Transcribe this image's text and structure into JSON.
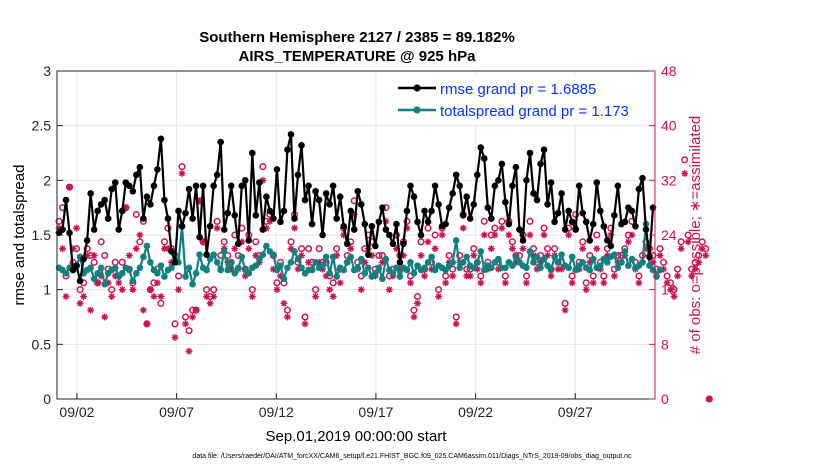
{
  "chart_data": {
    "type": "line",
    "title": "Southern Hemisphere 2127 / 2385 = 89.182%",
    "subtitle": "AIRS_TEMPERATURE @ 925 hPa",
    "xlabel": "Sep.01,2019 00:00:00 start",
    "ylabel": "rmse and totalspread",
    "y2label": "# of obs: o=possible; ∗=assimilated",
    "footer": "data file: /Users/raeder/DAI/ATM_forcXX/CAM6_setup/f.e21.FHIST_BGC.f09_025.CAM6assim.011/Diags_NTrS_2019-09/obs_diag_output.nc",
    "x_ticks": [
      {
        "day": 2,
        "label": "09/02"
      },
      {
        "day": 7,
        "label": "09/07"
      },
      {
        "day": 12,
        "label": "09/12"
      },
      {
        "day": 17,
        "label": "09/17"
      },
      {
        "day": 22,
        "label": "09/22"
      },
      {
        "day": 27,
        "label": "09/27"
      }
    ],
    "xlim": [
      1,
      31
    ],
    "ylim": [
      0,
      3
    ],
    "y_ticks": [
      "0",
      "0.5",
      "1",
      "1.5",
      "2",
      "2.5",
      "3"
    ],
    "y2lim": [
      0,
      48
    ],
    "y2_ticks": [
      "0",
      "8",
      "16",
      "24",
      "32",
      "40",
      "48"
    ],
    "colors": {
      "rmse": "#000000",
      "spread": "#108080",
      "obs": "#cc1150",
      "legend_text": "#0033ff"
    },
    "series": [
      {
        "name": "rmse grand pr = 1.6885",
        "key": "rmse",
        "axis": "left",
        "values": [
          1.52,
          1.55,
          1.82,
          1.52,
          1.18,
          1.22,
          1.08,
          1.28,
          1.45,
          1.88,
          1.55,
          1.72,
          1.78,
          1.82,
          1.65,
          1.92,
          1.98,
          1.55,
          1.72,
          1.98,
          1.95,
          1.9,
          2.05,
          2.12,
          1.65,
          1.85,
          1.78,
          1.95,
          2.1,
          2.38,
          1.82,
          1.65,
          1.35,
          1.25,
          1.72,
          1.58,
          1.7,
          1.92,
          1.65,
          1.95,
          1.48,
          1.95,
          1.32,
          1.58,
          1.95,
          2.05,
          2.35,
          1.55,
          1.7,
          1.95,
          1.68,
          1.42,
          1.95,
          2.0,
          1.45,
          2.25,
          1.68,
          1.98,
          1.55,
          1.85,
          1.72,
          1.65,
          2.1,
          1.62,
          1.72,
          2.28,
          2.42,
          1.65,
          2.05,
          2.32,
          1.82,
          1.95,
          1.6,
          1.9,
          1.82,
          1.5,
          1.88,
          1.78,
          1.95,
          1.65,
          1.85,
          1.58,
          1.42,
          1.72,
          1.55,
          1.9,
          1.78,
          1.6,
          1.32,
          1.58,
          1.4,
          1.62,
          1.75,
          1.55,
          1.5,
          1.42,
          1.6,
          1.25,
          1.42,
          1.72,
          1.95,
          1.85,
          1.62,
          1.5,
          1.72,
          1.62,
          1.72,
          1.95,
          1.78,
          1.58,
          1.6,
          1.75,
          1.88,
          2.05,
          1.95,
          1.68,
          1.85,
          1.65,
          1.78,
          2.05,
          2.3,
          2.2,
          1.75,
          1.65,
          1.95,
          2.0,
          2.15,
          1.8,
          1.6,
          1.95,
          2.12,
          1.55,
          1.45,
          2.0,
          2.25,
          1.88,
          1.82,
          2.15,
          2.28,
          1.78,
          1.98,
          1.62,
          1.7,
          1.88,
          1.55,
          1.72,
          1.62,
          1.55,
          1.95,
          1.7,
          1.62,
          1.45,
          1.6,
          1.98,
          1.72,
          1.58,
          1.45,
          1.4,
          1.68,
          1.95,
          1.6,
          1.62,
          1.75,
          1.72,
          1.58,
          1.92,
          2.02,
          1.55,
          1.3,
          1.75
        ]
      },
      {
        "name": "totalspread grand pr = 1.173",
        "key": "spread",
        "axis": "left",
        "values": [
          1.2,
          1.18,
          1.15,
          1.2,
          1.18,
          1.22,
          1.3,
          1.15,
          1.18,
          1.2,
          1.1,
          1.15,
          1.2,
          1.05,
          1.15,
          1.18,
          1.2,
          1.12,
          1.15,
          1.2,
          1.18,
          1.08,
          1.15,
          1.2,
          1.3,
          1.4,
          1.25,
          1.18,
          1.15,
          1.22,
          1.12,
          1.18,
          1.2,
          1.32,
          1.25,
          1.58,
          1.12,
          1.2,
          1.05,
          1.15,
          1.32,
          1.2,
          1.18,
          1.28,
          1.32,
          1.25,
          1.18,
          1.35,
          1.18,
          1.25,
          1.15,
          1.2,
          1.3,
          1.18,
          1.15,
          1.2,
          1.22,
          1.28,
          1.32,
          1.4,
          1.35,
          1.32,
          1.18,
          1.22,
          1.1,
          1.2,
          1.25,
          1.35,
          1.28,
          1.2,
          1.15,
          1.18,
          1.18,
          1.25,
          1.2,
          1.22,
          1.3,
          1.15,
          1.3,
          1.12,
          1.2,
          1.18,
          1.25,
          1.3,
          1.18,
          1.2,
          1.28,
          1.15,
          1.2,
          1.12,
          1.15,
          1.2,
          1.1,
          1.28,
          1.18,
          1.15,
          1.2,
          1.12,
          1.2,
          1.18,
          1.25,
          1.15,
          1.22,
          1.18,
          1.2,
          1.25,
          1.3,
          1.18,
          1.22,
          1.2,
          1.18,
          1.22,
          1.25,
          1.45,
          1.2,
          1.25,
          1.3,
          1.22,
          1.2,
          1.25,
          1.35,
          1.18,
          1.22,
          1.2,
          1.25,
          1.28,
          1.2,
          1.2,
          1.25,
          1.22,
          1.3,
          1.25,
          1.22,
          1.2,
          1.35,
          1.25,
          1.3,
          1.2,
          1.28,
          1.22,
          1.18,
          1.3,
          1.25,
          1.32,
          1.22,
          1.2,
          1.3,
          1.18,
          1.22,
          1.25,
          1.2,
          1.18,
          1.28,
          1.2,
          1.22,
          1.28,
          1.25,
          1.3,
          1.32,
          1.2,
          1.25,
          1.35,
          1.22,
          1.28,
          1.2,
          1.22,
          1.25,
          1.6,
          1.22,
          1.18,
          1.12,
          1.18
        ]
      },
      {
        "name": "obs possible",
        "key": "possible",
        "axis": "right",
        "values": [
          26,
          28,
          18,
          31,
          20,
          22,
          16,
          17,
          22,
          21,
          20,
          17,
          23,
          21,
          19,
          16,
          20,
          18,
          20,
          28,
          19,
          17,
          27,
          23,
          26,
          11,
          16,
          17,
          19,
          14,
          23,
          25,
          22,
          11,
          18,
          34,
          12,
          10,
          13,
          13,
          29,
          23,
          16,
          15,
          16,
          26,
          21,
          23,
          21,
          20,
          24,
          21,
          25,
          19,
          24,
          16,
          23,
          21,
          34,
          26,
          27,
          21,
          17,
          20,
          17,
          13,
          23,
          27,
          20,
          22,
          12,
          22,
          20,
          16,
          22,
          20,
          20,
          18,
          17,
          22,
          19,
          25,
          21,
          23,
          29,
          20,
          18,
          22,
          24,
          23,
          19,
          21,
          21,
          28,
          18,
          19,
          24,
          21,
          23,
          26,
          18,
          13,
          15,
          23,
          19,
          25,
          20,
          24,
          16,
          25,
          18,
          21,
          19,
          12,
          21,
          27,
          19,
          19,
          22,
          20,
          18,
          26,
          20,
          24,
          25,
          20,
          26,
          18,
          26,
          23,
          21,
          21,
          24,
          18,
          26,
          22,
          20,
          21,
          25,
          22,
          19,
          22,
          20,
          20,
          14,
          25,
          18,
          27,
          20,
          23,
          17,
          21,
          18,
          24,
          20,
          18,
          22,
          25,
          19,
          21,
          21,
          22,
          24,
          26,
          20,
          18,
          21,
          23,
          22,
          21,
          19,
          22,
          20,
          18,
          17,
          16,
          19,
          23,
          35,
          24,
          19,
          20,
          21,
          23,
          22,
          0
        ]
      },
      {
        "name": "obs assimilated",
        "key": "assimilated",
        "axis": "right",
        "values": [
          25,
          22,
          15,
          31,
          22,
          25,
          14,
          15,
          21,
          13,
          21,
          17,
          18,
          12,
          17,
          15,
          18,
          17,
          16,
          28,
          21,
          16,
          22,
          24,
          13,
          11,
          16,
          15,
          17,
          15,
          22,
          22,
          20,
          9,
          16,
          33,
          11,
          7,
          12,
          13,
          29,
          23,
          15,
          14,
          15,
          25,
          19,
          22,
          20,
          19,
          22,
          19,
          23,
          18,
          22,
          15,
          21,
          20,
          32,
          25,
          26,
          19,
          16,
          18,
          14,
          12,
          22,
          25,
          19,
          21,
          11,
          20,
          19,
          15,
          20,
          19,
          18,
          16,
          15,
          21,
          17,
          24,
          20,
          22,
          27,
          19,
          16,
          20,
          22,
          21,
          18,
          19,
          20,
          26,
          16,
          18,
          22,
          19,
          21,
          25,
          17,
          12,
          14,
          21,
          18,
          23,
          19,
          22,
          15,
          24,
          17,
          20,
          18,
          11,
          20,
          25,
          18,
          18,
          21,
          19,
          17,
          24,
          19,
          22,
          24,
          19,
          25,
          17,
          24,
          22,
          20,
          20,
          22,
          17,
          24,
          21,
          19,
          20,
          24,
          21,
          18,
          21,
          19,
          19,
          13,
          24,
          17,
          25,
          19,
          22,
          16,
          20,
          17,
          22,
          19,
          17,
          21,
          24,
          18,
          20,
          20,
          21,
          23,
          24,
          19,
          17,
          20,
          22,
          21,
          20,
          18,
          21,
          19,
          17,
          16,
          15,
          18,
          22,
          33,
          23,
          18,
          19,
          20,
          22,
          21,
          0
        ]
      }
    ]
  }
}
